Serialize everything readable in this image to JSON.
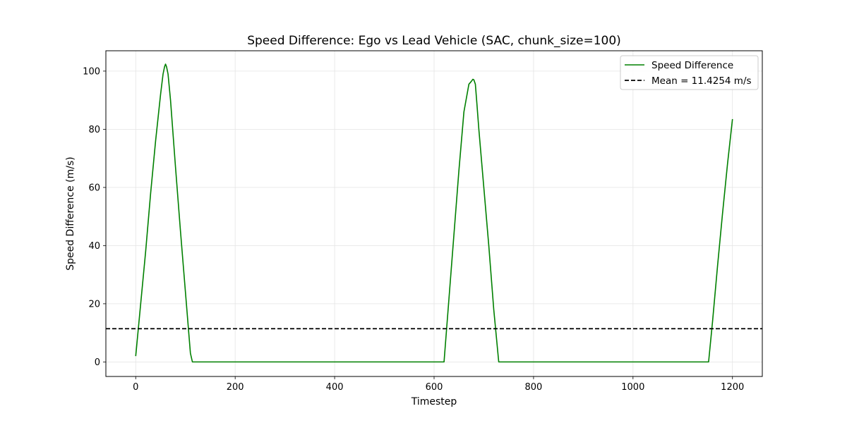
{
  "chart_data": {
    "type": "line",
    "title": "Speed Difference: Ego vs Lead Vehicle (SAC, chunk_size=100)",
    "xlabel": "Timestep",
    "ylabel": "Speed Difference (m/s)",
    "xlim": [
      -60,
      1260
    ],
    "ylim": [
      -5,
      107
    ],
    "xticks": [
      0,
      200,
      400,
      600,
      800,
      1000,
      1200
    ],
    "yticks": [
      0,
      20,
      40,
      60,
      80,
      100
    ],
    "grid": true,
    "legend_position": "top-right",
    "series": [
      {
        "name": "Speed Difference",
        "color": "#008000",
        "style": "solid",
        "x": [
          0,
          10,
          20,
          30,
          40,
          50,
          55,
          58,
          60,
          62,
          65,
          70,
          80,
          90,
          100,
          110,
          114,
          200,
          400,
          600,
          620,
          630,
          640,
          650,
          660,
          670,
          675,
          678,
          680,
          683,
          686,
          690,
          700,
          710,
          720,
          730,
          800,
          1000,
          1152,
          1160,
          1170,
          1180,
          1190,
          1200
        ],
        "y": [
          2,
          20,
          38,
          58,
          76,
          92,
          99,
          101.5,
          102.4,
          101.5,
          99,
          90,
          67,
          45,
          24,
          3,
          0,
          0,
          0,
          0,
          0,
          22,
          44,
          66,
          86,
          95.5,
          96.5,
          97.2,
          97,
          95.5,
          89,
          80,
          60,
          40,
          18,
          0,
          0,
          0,
          0,
          14,
          33,
          51,
          68,
          83.5
        ]
      },
      {
        "name": "Mean = 11.4254 m/s",
        "color": "#000000",
        "style": "dashed",
        "x": [
          -60,
          1260
        ],
        "y": [
          11.4254,
          11.4254
        ]
      }
    ]
  }
}
